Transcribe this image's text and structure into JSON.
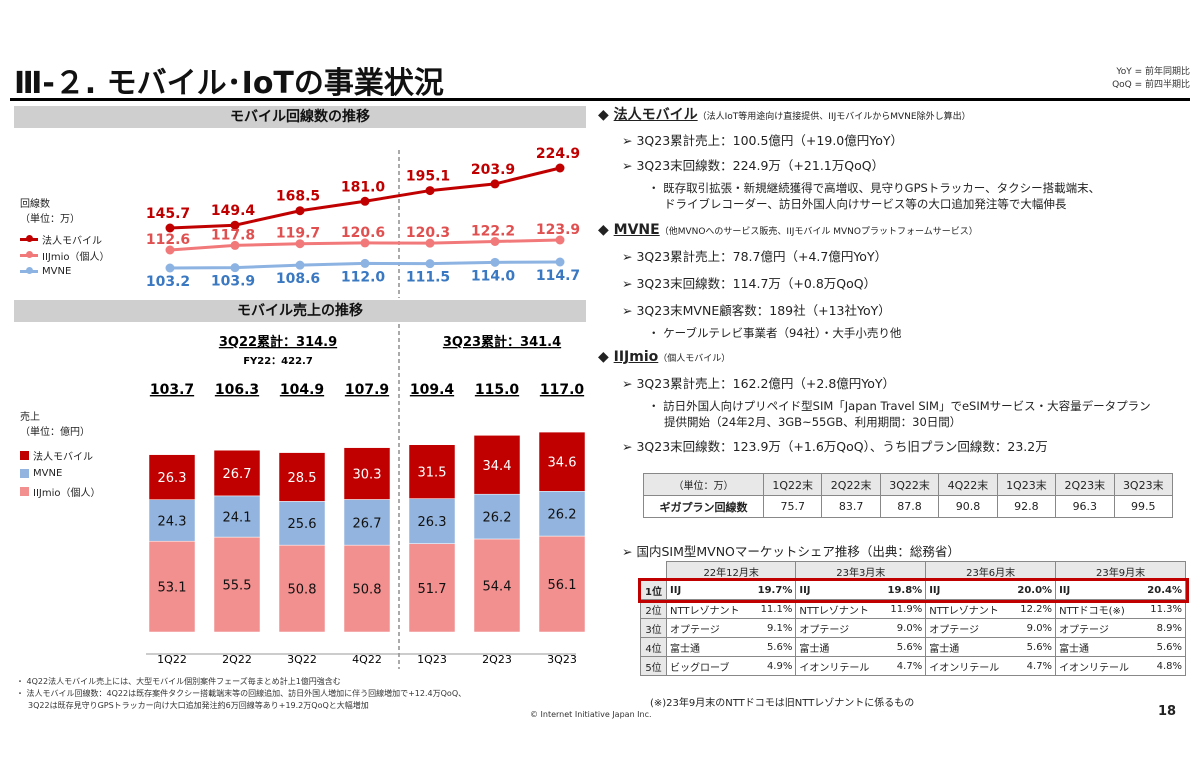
{
  "header": {
    "title": "Ⅲ-２. モバイル･IoTの事業状況",
    "yoy_note": "YoY = 前年同期比",
    "qoq_note": "QoQ = 前四半期比",
    "page_number": "18",
    "copyright": "© Internet Initiative Japan Inc."
  },
  "colors": {
    "corporate": "#C00000",
    "iijmio": "#F4A6A6",
    "mvne": "#93B4DE",
    "highlight": "#C00000"
  },
  "chart_data": [
    {
      "type": "line",
      "title": "モバイル回線数の推移",
      "legend_title": "回線数",
      "legend_unit": "（単位：万）",
      "categories": [
        "1Q22",
        "2Q22",
        "3Q22",
        "4Q22",
        "1Q23",
        "2Q23",
        "3Q23"
      ],
      "series": [
        {
          "name": "法人モバイル",
          "color": "#C00000",
          "values": [
            145.7,
            149.4,
            168.5,
            181.0,
            195.1,
            203.9,
            224.9
          ]
        },
        {
          "name": "IIJmio（個人）",
          "color": "#F2797A",
          "values": [
            112.6,
            117.8,
            119.7,
            120.6,
            120.3,
            122.2,
            123.9
          ]
        },
        {
          "name": "MVNE",
          "color": "#8DB3E2",
          "values": [
            103.2,
            103.9,
            108.6,
            112.0,
            111.5,
            114.0,
            114.7
          ]
        }
      ],
      "legend_position": "left"
    },
    {
      "type": "bar",
      "stacked": true,
      "title": "モバイル売上の推移",
      "legend_title": "売上",
      "legend_unit": "（単位：億円）",
      "categories": [
        "1Q22",
        "2Q22",
        "3Q22",
        "4Q22",
        "1Q23",
        "2Q23",
        "3Q23"
      ],
      "totals": [
        "103.7",
        "106.3",
        "104.9",
        "107.9",
        "109.4",
        "115.0",
        "117.0"
      ],
      "cumulative_labels": [
        "3Q22累計：314.9",
        "3Q23累計：341.4"
      ],
      "fy_label": "FY22：422.7",
      "series": [
        {
          "name": "IIJmio（個人）",
          "color": "#F28F8F",
          "values": [
            53.1,
            55.5,
            50.8,
            50.8,
            51.7,
            54.4,
            56.1
          ]
        },
        {
          "name": "MVNE",
          "color": "#93B4DE",
          "values": [
            24.3,
            24.1,
            25.6,
            26.7,
            26.3,
            26.2,
            26.2
          ]
        },
        {
          "name": "法人モバイル",
          "color": "#C00000",
          "values": [
            26.3,
            26.7,
            28.5,
            30.3,
            31.5,
            34.4,
            34.6
          ]
        }
      ],
      "legend_order": [
        "法人モバイル",
        "MVNE",
        "IIJmio（個人）"
      ],
      "legend_position": "left"
    }
  ],
  "right": {
    "corp": {
      "head": "法人モバイル",
      "note": "（法人IoT等用途向け直接提供、IIJモバイルからMVNE除外し算出）",
      "items": [
        "3Q23累計売上：100.5億円（+19.0億円YoY）",
        "3Q23末回線数：224.9万（+21.1万QoQ）"
      ],
      "sub": [
        "既存取引拡張・新規継続獲得で高増収、見守りGPSトラッカー、タクシー搭載端末、",
        "ドライブレコーダー、訪日外国人向けサービス等の大口追加発注等で大幅伸長"
      ]
    },
    "mvne": {
      "head": "MVNE",
      "note": "（他MVNOへのサービス販売、IIJモバイル MVNOプラットフォームサービス）",
      "items": [
        "3Q23累計売上：78.7億円（+4.7億円YoY）",
        "3Q23末回線数：114.7万（+0.8万QoQ）",
        "3Q23末MVNE顧客数：189社（+13社YoY）"
      ],
      "sub": [
        "ケーブルテレビ事業者（94社）・大手小売り他"
      ]
    },
    "iijmio": {
      "head": "IIJmio",
      "note": "（個人モバイル）",
      "items": [
        "3Q23累計売上：162.2億円（+2.8億円YoY）"
      ],
      "sub": [
        "訪日外国人向けプリペイド型SIM「Japan Travel SIM」でeSIMサービス・大容量データプラン",
        "提供開始（24年2月、3GB~55GB、利用期間：30日間）"
      ],
      "item2": "3Q23末回線数：123.9万（+1.6万QoQ）、うち旧プラン回線数：23.2万"
    },
    "giga_table": {
      "header": [
        "（単位：万）",
        "1Q22末",
        "2Q22末",
        "3Q22末",
        "4Q22末",
        "1Q23末",
        "2Q23末",
        "3Q23末"
      ],
      "row": [
        "ギガプラン回線数",
        "75.7",
        "83.7",
        "87.8",
        "90.8",
        "92.8",
        "96.3",
        "99.5"
      ]
    },
    "share": {
      "title": "国内SIM型MVNOマーケットシェア推移（出典：総務省）",
      "periods": [
        "22年12月末",
        "23年3月末",
        "23年6月末",
        "23年9月末"
      ],
      "rows": [
        {
          "rank": "1位",
          "cells": [
            [
              "IIJ",
              "19.7%"
            ],
            [
              "IIJ",
              "19.8%"
            ],
            [
              "IIJ",
              "20.0%"
            ],
            [
              "IIJ",
              "20.4%"
            ]
          ]
        },
        {
          "rank": "2位",
          "cells": [
            [
              "NTTレゾナント",
              "11.1%"
            ],
            [
              "NTTレゾナント",
              "11.9%"
            ],
            [
              "NTTレゾナント",
              "12.2%"
            ],
            [
              "NTTドコモ(※)",
              "11.3%"
            ]
          ]
        },
        {
          "rank": "3位",
          "cells": [
            [
              "オプテージ",
              "9.1%"
            ],
            [
              "オプテージ",
              "9.0%"
            ],
            [
              "オプテージ",
              "9.0%"
            ],
            [
              "オプテージ",
              "8.9%"
            ]
          ]
        },
        {
          "rank": "4位",
          "cells": [
            [
              "富士通",
              "5.6%"
            ],
            [
              "富士通",
              "5.6%"
            ],
            [
              "富士通",
              "5.6%"
            ],
            [
              "富士通",
              "5.6%"
            ]
          ]
        },
        {
          "rank": "5位",
          "cells": [
            [
              "ビッグローブ",
              "4.9%"
            ],
            [
              "イオンリテール",
              "4.7%"
            ],
            [
              "イオンリテール",
              "4.7%"
            ],
            [
              "イオンリテール",
              "4.8%"
            ]
          ]
        }
      ],
      "footnote": "(※)23年9月末のNTTドコモは旧NTTレゾナントに係るもの"
    }
  },
  "footnotes": [
    "4Q22法人モバイル売上には、大型モバイル個別案件フェーズ毎まとめ計上1億円強含む",
    "法人モバイル回線数：4Q22は既存案件タクシー搭載端末等の回線追加、訪日外国人増加に伴う回線増加で+12.4万QoQ、",
    "3Q22は既存見守りGPSトラッカー向け大口追加発注約6万回線等あり+19.2万QoQと大幅増加"
  ]
}
